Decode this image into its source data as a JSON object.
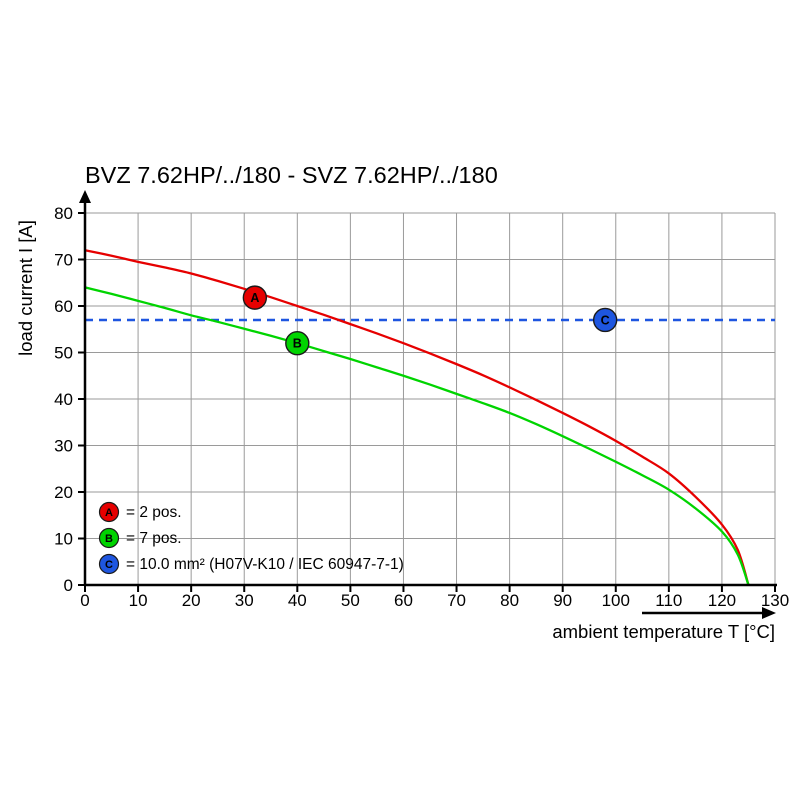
{
  "chart": {
    "title": "BVZ 7.62HP/../180 - SVZ 7.62HP/../180",
    "xlabel": "ambient temperature T [°C]",
    "ylabel": "load current I [A]"
  },
  "chart_data": {
    "type": "line",
    "title": "BVZ 7.62HP/../180 - SVZ 7.62HP/../180",
    "xlabel": "ambient temperature T [°C]",
    "ylabel": "load current I [A]",
    "xlim": [
      0,
      130
    ],
    "ylim": [
      0,
      80
    ],
    "xtick_step": 10,
    "ytick_step": 10,
    "grid": true,
    "grid_color": "#9a9a9a",
    "series": [
      {
        "name": "A",
        "label": "2 pos.",
        "color": "#e60000",
        "x": [
          0,
          5,
          10,
          15,
          20,
          25,
          30,
          35,
          40,
          45,
          50,
          55,
          60,
          65,
          70,
          75,
          80,
          85,
          90,
          95,
          100,
          105,
          110,
          115,
          120,
          123,
          125
        ],
        "y": [
          72,
          70.8,
          69.5,
          68.3,
          67,
          65.4,
          63.7,
          61.9,
          60,
          58.1,
          56.1,
          54.1,
          52,
          49.8,
          47.5,
          45.1,
          42.5,
          39.8,
          37,
          34.1,
          31,
          27.6,
          24,
          19,
          13,
          7.5,
          0
        ]
      },
      {
        "name": "B",
        "label": "7 pos.",
        "color": "#00d400",
        "x": [
          0,
          5,
          10,
          15,
          20,
          25,
          30,
          35,
          40,
          45,
          50,
          55,
          60,
          65,
          70,
          75,
          80,
          85,
          90,
          95,
          100,
          105,
          110,
          115,
          120,
          123,
          125
        ],
        "y": [
          64,
          62.6,
          61.1,
          59.6,
          58,
          56.6,
          55.1,
          53.6,
          52,
          50.3,
          48.6,
          46.8,
          45,
          43.1,
          41.1,
          39.1,
          37,
          34.6,
          32,
          29.3,
          26.5,
          23.6,
          20.5,
          16.5,
          11.5,
          6.5,
          0
        ]
      }
    ],
    "limit_line": {
      "name": "C",
      "value": 57,
      "color": "#1e56e0",
      "style": "dashed",
      "label": "10.0 mm² (H07V-K10 / IEC 60947-7-1)"
    },
    "markers": [
      {
        "name": "A",
        "x": 32,
        "y": 61.8,
        "color": "#e60000"
      },
      {
        "name": "B",
        "x": 40,
        "y": 52.0,
        "color": "#00d400"
      },
      {
        "name": "C",
        "x": 98,
        "y": 57.0,
        "color": "#1e56e0"
      }
    ],
    "legend": [
      {
        "name": "A",
        "color": "#e60000",
        "text": "= 2 pos."
      },
      {
        "name": "B",
        "color": "#00d400",
        "text": "= 7 pos."
      },
      {
        "name": "C",
        "color": "#1e56e0",
        "text": "= 10.0 mm² (H07V-K10 / IEC 60947-7-1)"
      }
    ],
    "legend_position": "lower-left"
  }
}
